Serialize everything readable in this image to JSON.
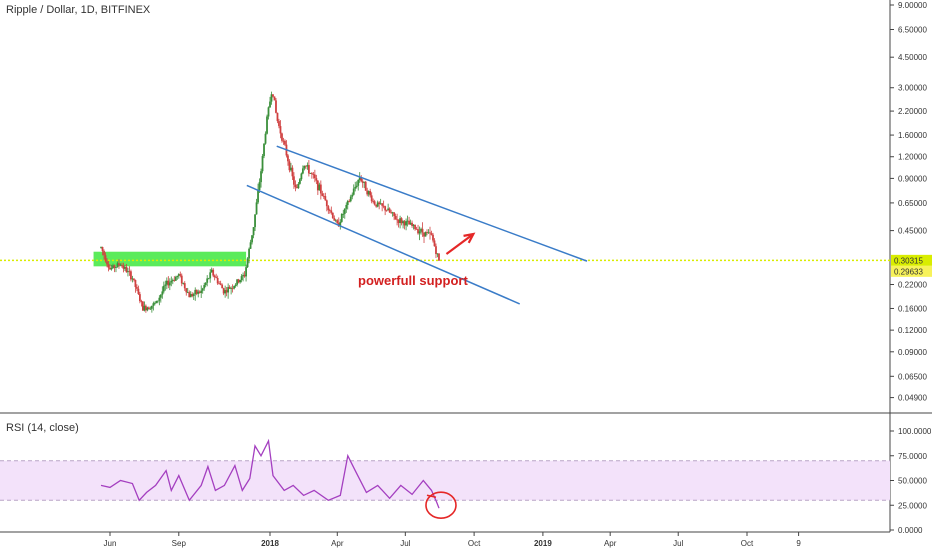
{
  "header": {
    "symbol_label": "Ripple / Dollar, 1D, BITFINEX"
  },
  "rsi_panel": {
    "title": "RSI (14, close)"
  },
  "annotation": {
    "text": "powerfull support"
  },
  "colors": {
    "support_line": "#d9ed00",
    "support_zone": "#3ee83e",
    "channel": "#3a7cc8",
    "arrow": "#e52727",
    "annotation": "#d32020",
    "rsi_line": "#a43fc0",
    "rsi_band": "#f3e2fa",
    "candle_up": "#3a8f3a",
    "candle_down": "#d04040"
  },
  "chart_data": [
    {
      "type": "candlestick",
      "title": "Ripple / Dollar, 1D, BITFINEX",
      "scale": "log",
      "y_ticks": [
        "9.00000",
        "6.50000",
        "4.50000",
        "3.00000",
        "2.20000",
        "1.60000",
        "1.20000",
        "0.90000",
        "0.65000",
        "0.45000",
        "0.22000",
        "0.16000",
        "0.12000",
        "0.09000",
        "0.06500",
        "0.04900"
      ],
      "ylim": [
        0.045,
        9.0
      ],
      "x_ticks": [
        "Jun",
        "Sep",
        "2018",
        "Apr",
        "Jul",
        "Oct",
        "2019",
        "Apr",
        "Jul",
        "Oct",
        "9"
      ],
      "price_labels": [
        "0.30315",
        "0.29633"
      ],
      "price_path": [
        {
          "x": "2017-05-20",
          "y": 0.36
        },
        {
          "x": "2017-06-01",
          "y": 0.27
        },
        {
          "x": "2017-06-15",
          "y": 0.29
        },
        {
          "x": "2017-07-01",
          "y": 0.24
        },
        {
          "x": "2017-07-15",
          "y": 0.16
        },
        {
          "x": "2017-08-01",
          "y": 0.17
        },
        {
          "x": "2017-08-15",
          "y": 0.22
        },
        {
          "x": "2017-09-01",
          "y": 0.25
        },
        {
          "x": "2017-09-15",
          "y": 0.19
        },
        {
          "x": "2017-10-01",
          "y": 0.2
        },
        {
          "x": "2017-10-15",
          "y": 0.26
        },
        {
          "x": "2017-11-01",
          "y": 0.2
        },
        {
          "x": "2017-11-15",
          "y": 0.22
        },
        {
          "x": "2017-11-28",
          "y": 0.25
        },
        {
          "x": "2017-12-10",
          "y": 0.48
        },
        {
          "x": "2017-12-20",
          "y": 1.0
        },
        {
          "x": "2017-12-28",
          "y": 2.0
        },
        {
          "x": "2018-01-04",
          "y": 3.0
        },
        {
          "x": "2018-01-10",
          "y": 2.0
        },
        {
          "x": "2018-01-20",
          "y": 1.4
        },
        {
          "x": "2018-02-05",
          "y": 0.75
        },
        {
          "x": "2018-02-15",
          "y": 1.1
        },
        {
          "x": "2018-03-01",
          "y": 0.9
        },
        {
          "x": "2018-03-20",
          "y": 0.62
        },
        {
          "x": "2018-04-01",
          "y": 0.48
        },
        {
          "x": "2018-04-15",
          "y": 0.64
        },
        {
          "x": "2018-05-01",
          "y": 0.92
        },
        {
          "x": "2018-05-20",
          "y": 0.65
        },
        {
          "x": "2018-06-05",
          "y": 0.6
        },
        {
          "x": "2018-06-20",
          "y": 0.52
        },
        {
          "x": "2018-07-05",
          "y": 0.49
        },
        {
          "x": "2018-07-25",
          "y": 0.44
        },
        {
          "x": "2018-08-05",
          "y": 0.42
        },
        {
          "x": "2018-08-15",
          "y": 0.3
        }
      ],
      "support_level": 0.30315,
      "support_zone": {
        "from": "2017-05-10",
        "to": "2017-11-30",
        "low": 0.28,
        "high": 0.34
      },
      "channel_upper": [
        {
          "x": "2018-01-10",
          "y": 1.38
        },
        {
          "x": "2019-03-01",
          "y": 0.3
        }
      ],
      "channel_lower": [
        {
          "x": "2017-12-01",
          "y": 0.82
        },
        {
          "x": "2018-12-01",
          "y": 0.17
        }
      ],
      "arrow": [
        {
          "x": "2018-08-25",
          "y": 0.33
        },
        {
          "x": "2018-09-30",
          "y": 0.43
        }
      ]
    },
    {
      "type": "line",
      "title": "RSI (14, close)",
      "y_ticks": [
        "100.0000",
        "75.0000",
        "50.0000",
        "25.0000",
        "0.0000"
      ],
      "ylim": [
        0,
        100
      ],
      "band": [
        30,
        70
      ],
      "series": [
        {
          "values": [
            {
              "x": "2017-05-20",
              "y": 45
            },
            {
              "x": "2017-06-01",
              "y": 43
            },
            {
              "x": "2017-06-15",
              "y": 50
            },
            {
              "x": "2017-07-01",
              "y": 47
            },
            {
              "x": "2017-07-10",
              "y": 30
            },
            {
              "x": "2017-07-20",
              "y": 38
            },
            {
              "x": "2017-08-01",
              "y": 45
            },
            {
              "x": "2017-08-15",
              "y": 60
            },
            {
              "x": "2017-08-22",
              "y": 40
            },
            {
              "x": "2017-09-01",
              "y": 55
            },
            {
              "x": "2017-09-15",
              "y": 30
            },
            {
              "x": "2017-10-01",
              "y": 45
            },
            {
              "x": "2017-10-10",
              "y": 64
            },
            {
              "x": "2017-10-20",
              "y": 40
            },
            {
              "x": "2017-11-01",
              "y": 45
            },
            {
              "x": "2017-11-15",
              "y": 65
            },
            {
              "x": "2017-11-25",
              "y": 40
            },
            {
              "x": "2017-12-05",
              "y": 52
            },
            {
              "x": "2017-12-12",
              "y": 85
            },
            {
              "x": "2017-12-20",
              "y": 75
            },
            {
              "x": "2017-12-30",
              "y": 90
            },
            {
              "x": "2018-01-05",
              "y": 55
            },
            {
              "x": "2018-01-20",
              "y": 40
            },
            {
              "x": "2018-02-01",
              "y": 45
            },
            {
              "x": "2018-02-15",
              "y": 35
            },
            {
              "x": "2018-03-01",
              "y": 40
            },
            {
              "x": "2018-03-20",
              "y": 30
            },
            {
              "x": "2018-04-05",
              "y": 35
            },
            {
              "x": "2018-04-15",
              "y": 75
            },
            {
              "x": "2018-04-25",
              "y": 60
            },
            {
              "x": "2018-05-10",
              "y": 38
            },
            {
              "x": "2018-05-25",
              "y": 45
            },
            {
              "x": "2018-06-10",
              "y": 32
            },
            {
              "x": "2018-06-25",
              "y": 45
            },
            {
              "x": "2018-07-10",
              "y": 36
            },
            {
              "x": "2018-07-25",
              "y": 50
            },
            {
              "x": "2018-08-05",
              "y": 40
            },
            {
              "x": "2018-08-12",
              "y": 28
            },
            {
              "x": "2018-08-15",
              "y": 22
            }
          ]
        }
      ]
    }
  ]
}
